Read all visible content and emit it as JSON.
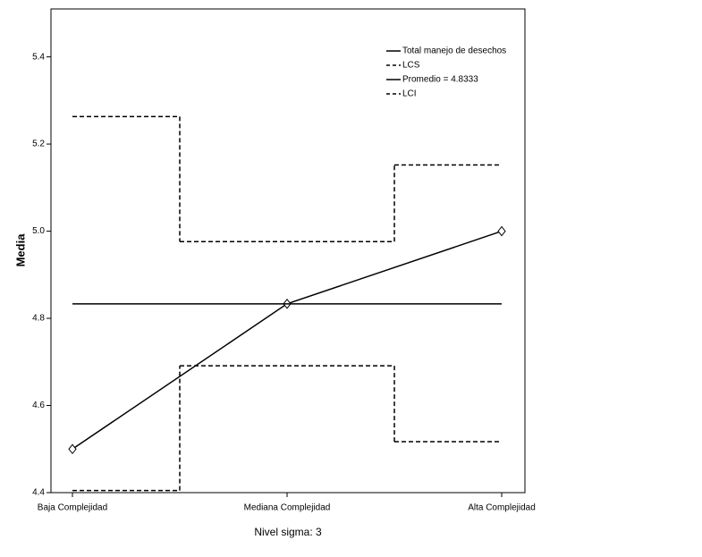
{
  "chart_data": {
    "type": "line",
    "categories": [
      "Baja Complejidad",
      "Mediana Complejidad",
      "Alta Complejidad"
    ],
    "x_label": "Nivel sigma:  3",
    "y_label": "Media",
    "series": [
      {
        "name": "Total manejo de desechos",
        "color": "#000000",
        "values": [
          4.5,
          4.8333,
          5.0
        ],
        "style": "solid",
        "step": false,
        "markers": true
      },
      {
        "name": "LCS",
        "color": "#000000",
        "values": [
          5.263,
          4.976,
          5.152
        ],
        "style": "dashed",
        "step": true,
        "markers": false
      },
      {
        "name": "Promedio = 4.8333",
        "color": "#000000",
        "values": [
          4.8333,
          4.8333,
          4.8333
        ],
        "style": "solid",
        "step": true,
        "markers": false
      },
      {
        "name": "LCI",
        "color": "#000000",
        "values": [
          4.405,
          4.691,
          4.517
        ],
        "style": "dashed",
        "step": true,
        "markers": false
      }
    ],
    "ylim": [
      4.4,
      5.51
    ],
    "yticks": [
      4.4,
      4.6,
      4.8,
      {
        "value": 5,
        "label": "5.0"
      },
      5.2,
      5.4
    ],
    "legend": "top-right"
  }
}
